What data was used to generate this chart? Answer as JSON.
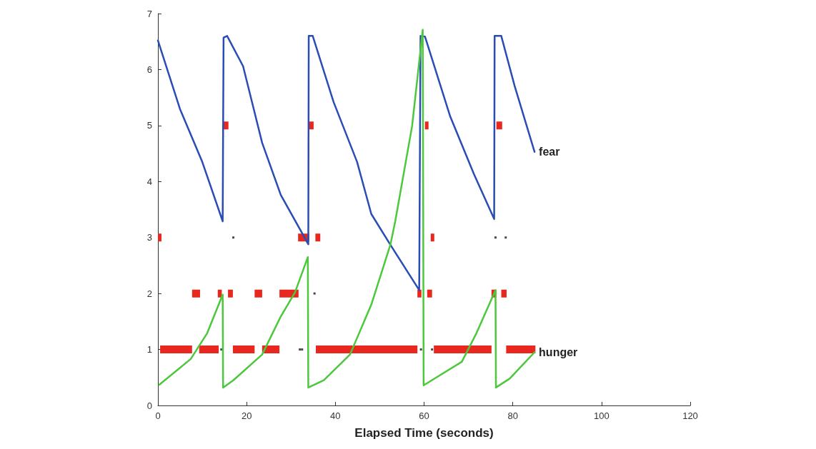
{
  "chart_data": {
    "type": "line",
    "xlabel": "Elapsed Time (seconds)",
    "xlim": [
      0,
      120
    ],
    "xticks": [
      0,
      20,
      40,
      60,
      80,
      100,
      120
    ],
    "ylim": [
      0,
      7
    ],
    "yticks": [
      0,
      1,
      2,
      3,
      4,
      5,
      6,
      7
    ],
    "grid": false,
    "legend": false,
    "line_style": "solid",
    "series": [
      {
        "name": "fear",
        "color": "#2a4db5",
        "x": [
          0,
          5,
          10,
          14.6,
          14.8,
          15.6,
          19.2,
          23.5,
          27.7,
          33.9,
          34.0,
          34.9,
          39.6,
          44.9,
          48.1,
          52.4,
          58.9,
          59.2,
          60.2,
          65.9,
          71.2,
          75.8,
          75.9,
          77.4,
          80.4,
          84.9
        ],
        "values": [
          6.52,
          5.29,
          4.35,
          3.29,
          6.57,
          6.6,
          6.06,
          4.69,
          3.76,
          2.88,
          6.6,
          6.6,
          5.42,
          4.35,
          3.42,
          2.87,
          2.06,
          6.6,
          6.59,
          5.16,
          4.14,
          3.33,
          6.6,
          6.6,
          5.71,
          4.53
        ]
      },
      {
        "name": "hunger",
        "color": "#4cc83c",
        "x": [
          0.3,
          7.4,
          11.1,
          14.6,
          14.7,
          17.0,
          23.5,
          27.7,
          30.9,
          33.8,
          33.9,
          37.4,
          43.3,
          48.1,
          52.4,
          53.5,
          57.3,
          59.7,
          59.9,
          68.5,
          71.8,
          76.1,
          76.2,
          79.3,
          84.9
        ],
        "values": [
          0.37,
          0.83,
          1.29,
          1.98,
          0.32,
          0.45,
          0.91,
          1.59,
          2.02,
          2.65,
          0.32,
          0.45,
          0.91,
          1.8,
          2.87,
          3.29,
          4.99,
          6.71,
          0.36,
          0.78,
          1.29,
          2.06,
          0.32,
          0.48,
          0.95
        ]
      },
      {
        "color": "#e8281e",
        "x": [
          0.5,
          7.7,
          8.5,
          9.3,
          13.7,
          15.3,
          16.9,
          21.8,
          22.6,
          23.5,
          27.4,
          31.5,
          35.6,
          58.5,
          60.3,
          62.2,
          75.2,
          76.8,
          78.5,
          85.1
        ],
        "values": [
          1,
          1,
          null,
          1,
          1,
          null,
          1,
          1,
          null,
          1,
          1,
          null,
          1,
          1,
          null,
          1,
          1,
          null,
          1,
          1
        ]
      },
      {
        "color": "#e8281e",
        "x": [
          7.7,
          9.5,
          11.5,
          13.5,
          14.4,
          15.1,
          15.8,
          16.9,
          19.3,
          21.8,
          23.5,
          25.4,
          27.4,
          31.7,
          45.1,
          58.5,
          59.4,
          60.0,
          60.7,
          61.8,
          68.5,
          75.2,
          76.3,
          76.8,
          77.4,
          78.6
        ],
        "values": [
          2,
          2,
          null,
          2,
          2,
          null,
          2,
          2,
          null,
          2,
          2,
          null,
          2,
          2,
          null,
          2,
          2,
          null,
          2,
          2,
          null,
          2,
          2,
          null,
          2,
          2
        ]
      },
      {
        "color": "#e8281e",
        "x": [
          0,
          0.8,
          16.2,
          31.6,
          34.1,
          34.8,
          35.5,
          36.6,
          49.0,
          61.5,
          62.3
        ],
        "values": [
          3,
          3,
          null,
          3,
          3,
          null,
          3,
          3,
          null,
          3,
          3
        ]
      },
      {
        "type": "scatter",
        "color": "#1a1a1a",
        "x": [
          14.3,
          32.0,
          32.5,
          59.3,
          61.8,
          35.3,
          17.0,
          76.1,
          78.4
        ],
        "values": [
          1,
          1,
          1,
          1,
          1,
          2,
          3,
          3,
          3
        ]
      },
      {
        "color": "#e8281e",
        "x": [
          14.8,
          15.9,
          25.0,
          34.1,
          35.1,
          47.6,
          60.2,
          61.0,
          68.6,
          76.3,
          77.6
        ],
        "values": [
          5,
          5,
          null,
          5,
          5,
          null,
          5,
          5,
          null,
          5,
          5
        ]
      }
    ]
  }
}
